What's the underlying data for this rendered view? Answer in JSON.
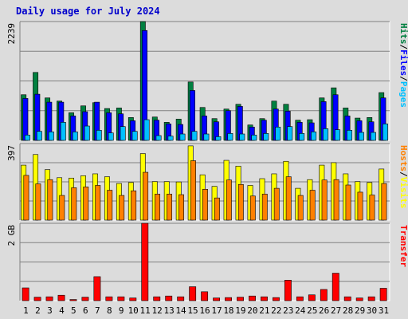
{
  "chart_data": {
    "type": "bar",
    "title": "Daily usage for July 2024",
    "categories": [
      "1",
      "2",
      "3",
      "4",
      "5",
      "6",
      "7",
      "8",
      "9",
      "10",
      "11",
      "12",
      "13",
      "14",
      "15",
      "16",
      "17",
      "18",
      "19",
      "20",
      "21",
      "22",
      "23",
      "24",
      "25",
      "26",
      "27",
      "28",
      "29",
      "30",
      "31"
    ],
    "weekend_days": [
      "6",
      "7",
      "13",
      "14",
      "20",
      "21",
      "27",
      "28"
    ],
    "panels": [
      {
        "id": "hits",
        "max_label": "2239",
        "ylim": [
          0,
          2239
        ],
        "side_label_parts": [
          "Hits",
          "/",
          "Files",
          "/",
          "Pages"
        ],
        "series": [
          {
            "name": "Hits",
            "color": "#008040",
            "values": [
              860,
              1280,
              800,
              740,
              520,
              650,
              710,
              600,
              610,
              430,
              2239,
              440,
              340,
              400,
              1100,
              620,
              410,
              590,
              680,
              290,
              410,
              740,
              680,
              380,
              390,
              800,
              990,
              610,
              420,
              430,
              900
            ]
          },
          {
            "name": "Files",
            "color": "#0000ff",
            "values": [
              790,
              870,
              720,
              720,
              460,
              540,
              720,
              520,
              500,
              370,
              2070,
              380,
              310,
              300,
              940,
              460,
              350,
              560,
              640,
              250,
              380,
              590,
              550,
              340,
              330,
              730,
              860,
              460,
              370,
              350,
              800
            ]
          },
          {
            "name": "Pages",
            "color": "#00c0ff",
            "values": [
              100,
              170,
              160,
              340,
              160,
              270,
              190,
              140,
              260,
              170,
              390,
              90,
              80,
              120,
              170,
              120,
              70,
              130,
              120,
              100,
              130,
              250,
              260,
              130,
              160,
              220,
              200,
              190,
              150,
              150,
              310
            ]
          }
        ]
      },
      {
        "id": "visits",
        "max_label": "397",
        "ylim": [
          0,
          397
        ],
        "side_label_parts": [
          "Hosts",
          "/",
          "Visits"
        ],
        "series": [
          {
            "name": "Visits",
            "color": "#ffff00",
            "values": [
              285,
              340,
              262,
              220,
              218,
              230,
              240,
              225,
              190,
              195,
              345,
              200,
              200,
              198,
              385,
              235,
              175,
              310,
              280,
              180,
              215,
              240,
              305,
              165,
              210,
              285,
              298,
              240,
              200,
              195,
              265
            ]
          },
          {
            "name": "Hosts",
            "color": "#ff8000",
            "values": [
              232,
              188,
              210,
              128,
              168,
              172,
              180,
              155,
              128,
              152,
              248,
              135,
              135,
              132,
              308,
              160,
              115,
              208,
              185,
              125,
              135,
              165,
              225,
              128,
              155,
              208,
              210,
              182,
              145,
              130,
              190
            ]
          }
        ]
      },
      {
        "id": "transfer",
        "max_label": "2 GB",
        "ylim": [
          0,
          2.0
        ],
        "side_label_parts": [
          "Transfer"
        ],
        "series": [
          {
            "name": "Transfer",
            "color": "#ff0000",
            "values": [
              0.33,
              0.09,
              0.1,
              0.14,
              0.03,
              0.09,
              0.62,
              0.1,
              0.1,
              0.07,
              2.0,
              0.1,
              0.12,
              0.1,
              0.36,
              0.23,
              0.07,
              0.08,
              0.09,
              0.12,
              0.1,
              0.08,
              0.53,
              0.1,
              0.15,
              0.29,
              0.71,
              0.1,
              0.07,
              0.1,
              0.32
            ]
          }
        ]
      }
    ],
    "colors": {
      "panel_bg": "#dcdcdc",
      "grid": "#808080",
      "weekday_label": "#000000",
      "weekend_label": "#00804b",
      "side_separator": "#000000"
    }
  }
}
